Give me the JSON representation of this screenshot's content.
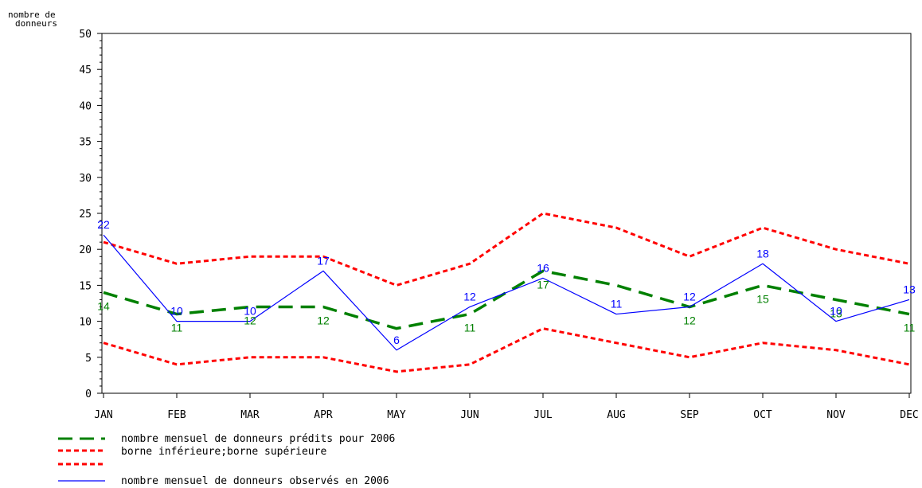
{
  "chart_data": {
    "type": "line",
    "ylabel": [
      "nombre de",
      "donneurs"
    ],
    "categories": [
      "JAN",
      "FEB",
      "MAR",
      "APR",
      "MAY",
      "JUN",
      "JUL",
      "AUG",
      "SEP",
      "OCT",
      "NOV",
      "DEC"
    ],
    "yticks": [
      0,
      5,
      10,
      15,
      20,
      25,
      30,
      35,
      40,
      45,
      50
    ],
    "ylim": [
      0,
      50
    ],
    "grid": false,
    "series": [
      {
        "key": "predicted",
        "name": "nombre mensuel de donneurs prédits pour 2006",
        "color": "#008000",
        "style": "long-dash",
        "values": [
          14,
          11,
          12,
          12,
          9,
          11,
          17,
          15,
          12,
          15,
          13,
          11
        ],
        "labels": [
          "14",
          "11",
          "12",
          "12",
          "",
          "11",
          "17",
          "",
          "12",
          "15",
          "13",
          "11"
        ]
      },
      {
        "key": "lower",
        "name": "borne inférieure;borne supérieure",
        "color": "#ff0000",
        "style": "short-dash",
        "values": [
          7,
          4,
          5,
          5,
          3,
          4,
          9,
          7,
          5,
          7,
          6,
          4
        ]
      },
      {
        "key": "upper",
        "name": "borne inférieure;borne supérieure",
        "color": "#ff0000",
        "style": "short-dash",
        "values": [
          21,
          18,
          19,
          19,
          15,
          18,
          25,
          23,
          19,
          23,
          20,
          18
        ]
      },
      {
        "key": "observed",
        "name": "nombre mensuel de donneurs observés en 2006",
        "color": "#0000ff",
        "style": "solid",
        "values": [
          22,
          10,
          10,
          17,
          6,
          12,
          16,
          11,
          12,
          18,
          10,
          13
        ],
        "labels": [
          "22",
          "10",
          "10",
          "17",
          "6",
          "12",
          "16",
          "11",
          "12",
          "18",
          "10",
          "13"
        ]
      }
    ],
    "legend": {
      "placement": "bottom-left",
      "entries": [
        {
          "key": "predicted",
          "label": "nombre mensuel de donneurs prédits pour 2006"
        },
        {
          "key": "bounds",
          "label": " borne inférieure;borne supérieure"
        },
        {
          "key": "observed",
          "label": "nombre mensuel de donneurs observés en 2006"
        }
      ]
    }
  }
}
